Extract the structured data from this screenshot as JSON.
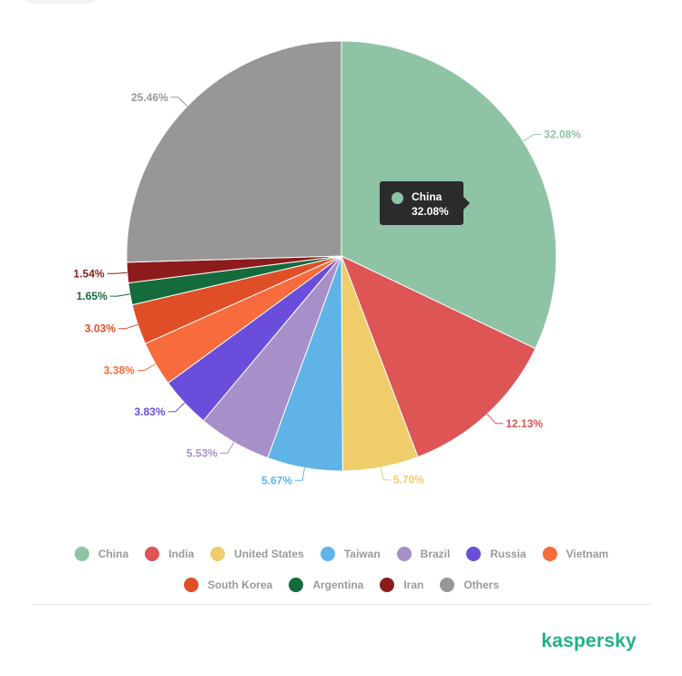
{
  "chart_data": {
    "type": "pie",
    "unit": "%",
    "slices": [
      {
        "name": "China",
        "value": 32.08,
        "label": "32.08%",
        "color": "#8fc3a6"
      },
      {
        "name": "India",
        "value": 12.13,
        "label": "12.13%",
        "color": "#dd5555"
      },
      {
        "name": "United States",
        "value": 5.7,
        "label": "5.70%",
        "color": "#eecd6a"
      },
      {
        "name": "Taiwan",
        "value": 5.67,
        "label": "5.67%",
        "color": "#5fb3e6"
      },
      {
        "name": "Brazil",
        "value": 5.53,
        "label": "5.53%",
        "color": "#a78fc9"
      },
      {
        "name": "Russia",
        "value": 3.83,
        "label": "3.83%",
        "color": "#6a4edb"
      },
      {
        "name": "Vietnam",
        "value": 3.38,
        "label": "3.38%",
        "color": "#f76b3c"
      },
      {
        "name": "South Korea",
        "value": 3.03,
        "label": "3.03%",
        "color": "#e04e28"
      },
      {
        "name": "Argentina",
        "value": 1.65,
        "label": "1.65%",
        "color": "#146b3c"
      },
      {
        "name": "Iran",
        "value": 1.54,
        "label": "1.54%",
        "color": "#8c1c1c"
      },
      {
        "name": "Others",
        "value": 25.46,
        "label": "25.46%",
        "color": "#979797"
      }
    ],
    "legend_placement": "bottom",
    "tooltip": {
      "name": "China",
      "value": "32.08%",
      "color": "#8fc3a6"
    }
  },
  "brand": {
    "name": "kaspersky"
  }
}
